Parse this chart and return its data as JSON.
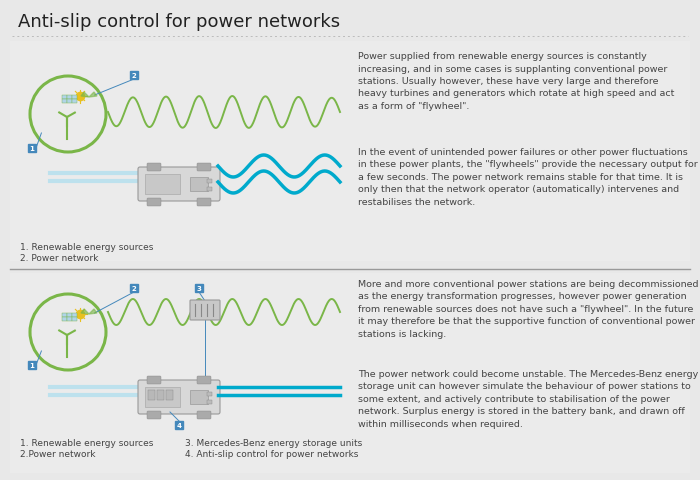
{
  "title": "Anti-slip control for power networks",
  "bg_color": "#e8e8e8",
  "title_color": "#222222",
  "title_fontsize": 13,
  "green_color": "#7ab648",
  "blue_color": "#00aacc",
  "blue_light": "#aaddee",
  "label_blue": "#4488bb",
  "text_color": "#444444",
  "gray_line": "#aaaaaa",
  "panel1_text1": "Power supplied from renewable energy sources is constantly\nincreasing, and in some cases is supplanting conventional power\nstations. Usually however, these have very large and therefore\nheavy turbines and generators which rotate at high speed and act\nas a form of \"flywheel\".",
  "panel1_text2": "In the event of unintended power failures or other power fluctuations\nin these power plants, the \"flywheels\" provide the necessary output for\na few seconds. The power network remains stable for that time. It is\nonly then that the network operator (automatically) intervenes and\nrestabilises the network.",
  "panel2_text1": "More and more conventional power stations are being decommissioned\nas the energy transformation progresses, however power generation\nfrom renewable sources does not have such a \"flywheel\". In the future\nit may therefore be that the supportive function of conventional power\nstations is lacking.",
  "panel2_text2": "The power network could become unstable. The Mercedes-Benz energy\nstorage unit can however simulate the behaviour of power stations to\nsome extent, and actively contribute to stabilisation of the power\nnetwork. Surplus energy is stored in the battery bank, and drawn off\nwithin milliseconds when required.",
  "panel1_legend": [
    "1. Renewable energy sources",
    "2. Power network"
  ],
  "panel2_legend_col1": [
    "1. Renewable energy sources",
    "2.Power network"
  ],
  "panel2_legend_col2": [
    "3. Mercedes-Benz energy storage units",
    "4. Anti-slip control for power networks"
  ]
}
